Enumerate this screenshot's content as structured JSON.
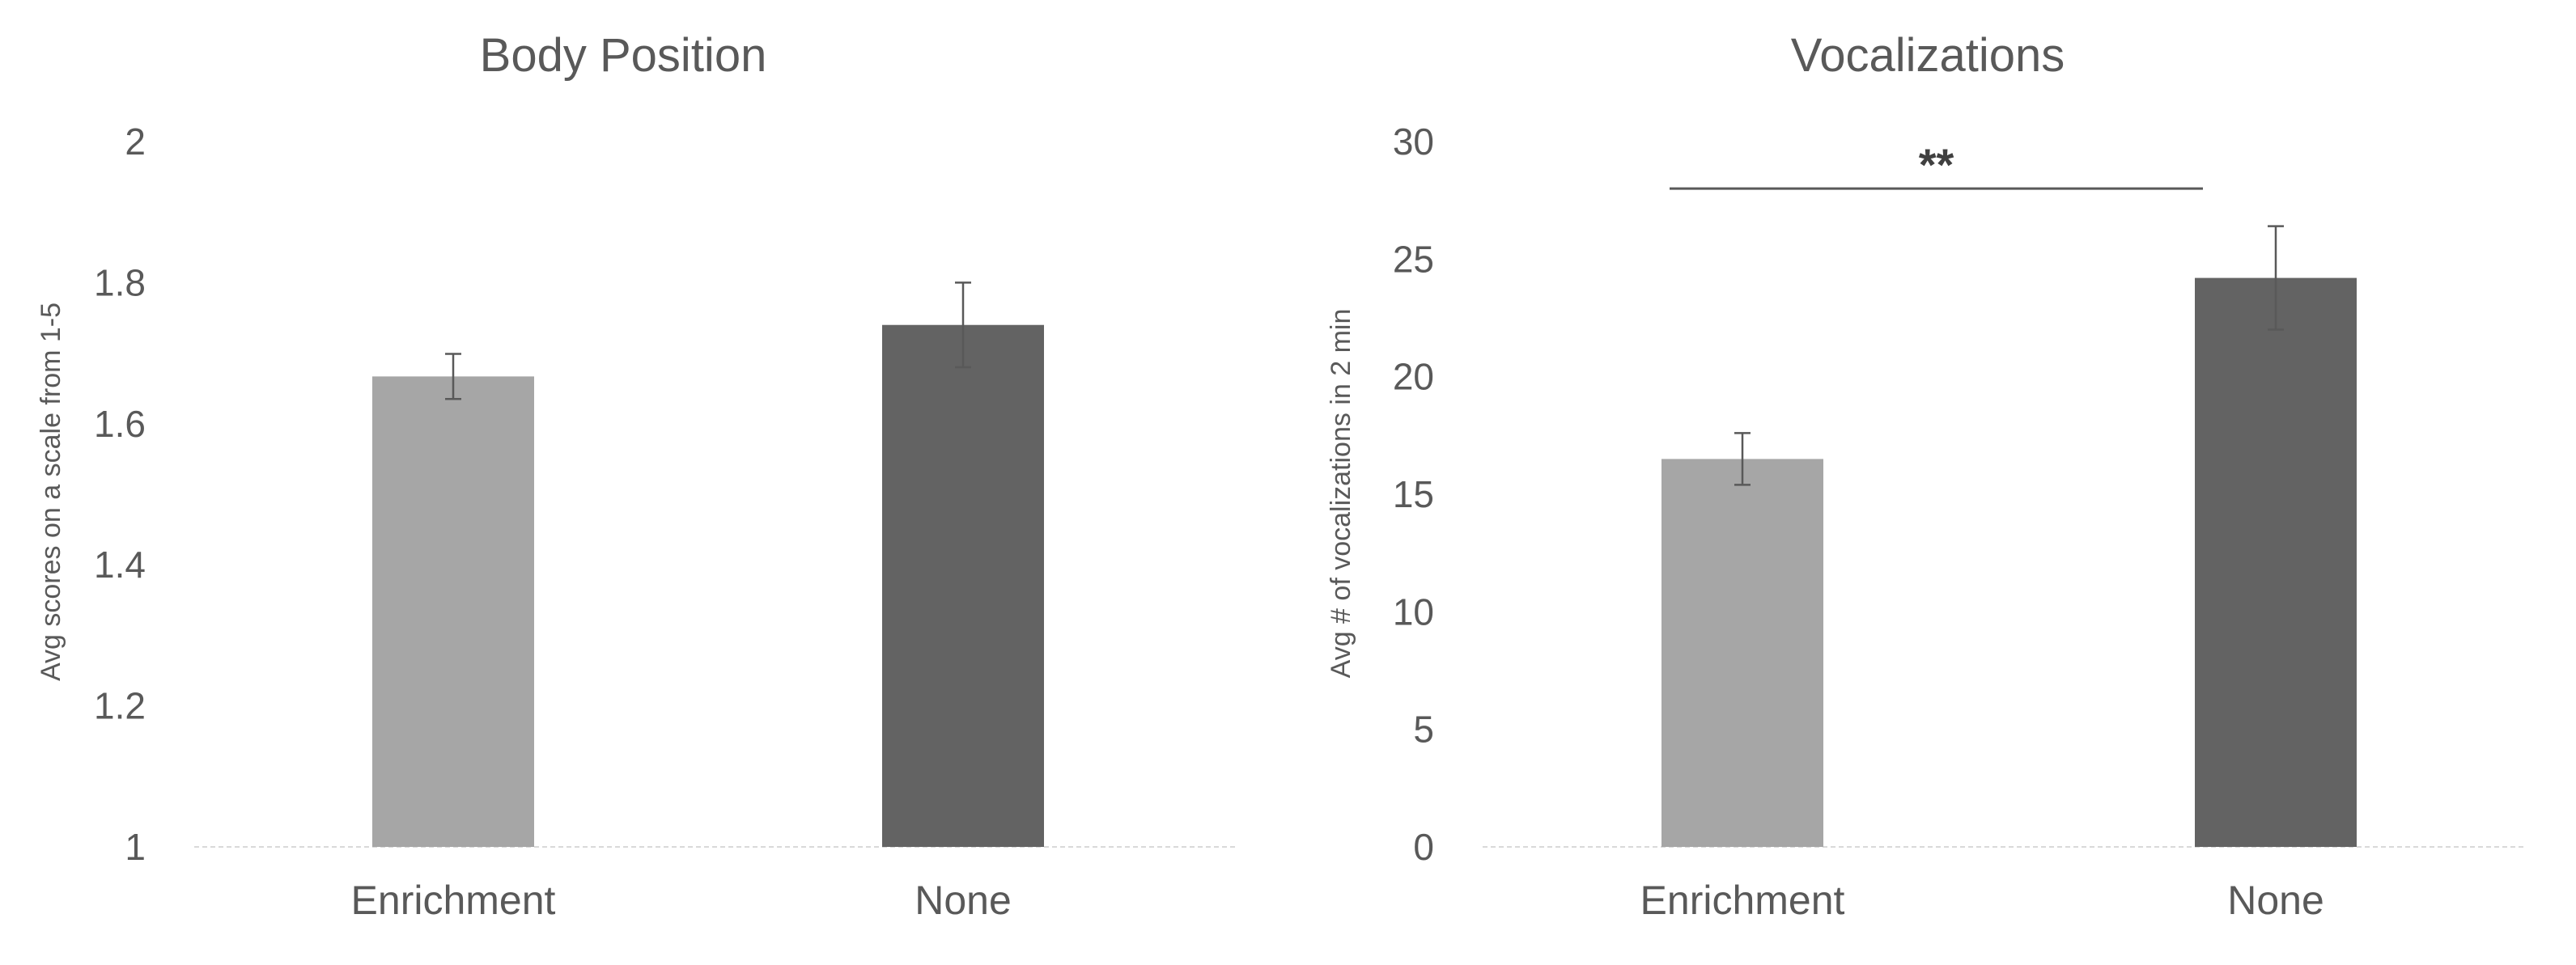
{
  "chart_data": [
    {
      "type": "bar",
      "title": "Body Position",
      "ylabel": "Avg scores on a scale from 1-5",
      "xlabel": "",
      "categories": [
        "Enrichment",
        "None"
      ],
      "values": [
        1.667,
        1.74
      ],
      "errors": [
        0.032,
        0.06
      ],
      "colors": [
        "#a6a6a6",
        "#636363"
      ],
      "ylim": [
        1,
        2
      ],
      "yticks": [
        1,
        1.2,
        1.4,
        1.6,
        1.8,
        2
      ],
      "ytick_labels": [
        "1",
        "1.2",
        "1.4",
        "1.6",
        "1.8",
        "2"
      ],
      "grid": false,
      "significance": null
    },
    {
      "type": "bar",
      "title": "Vocalizations",
      "ylabel": "Avg # of vocalizations in 2 min",
      "xlabel": "",
      "categories": [
        "Enrichment",
        "None"
      ],
      "values": [
        16.5,
        24.2
      ],
      "errors": [
        1.1,
        2.2
      ],
      "colors": [
        "#a6a6a6",
        "#636363"
      ],
      "ylim": [
        0,
        30
      ],
      "yticks": [
        0,
        5,
        10,
        15,
        20,
        25,
        30
      ],
      "ytick_labels": [
        "0",
        "5",
        "10",
        "15",
        "20",
        "25",
        "30"
      ],
      "grid": false,
      "significance": {
        "label": "**",
        "from": 0,
        "to": 1,
        "y": 28
      }
    }
  ]
}
